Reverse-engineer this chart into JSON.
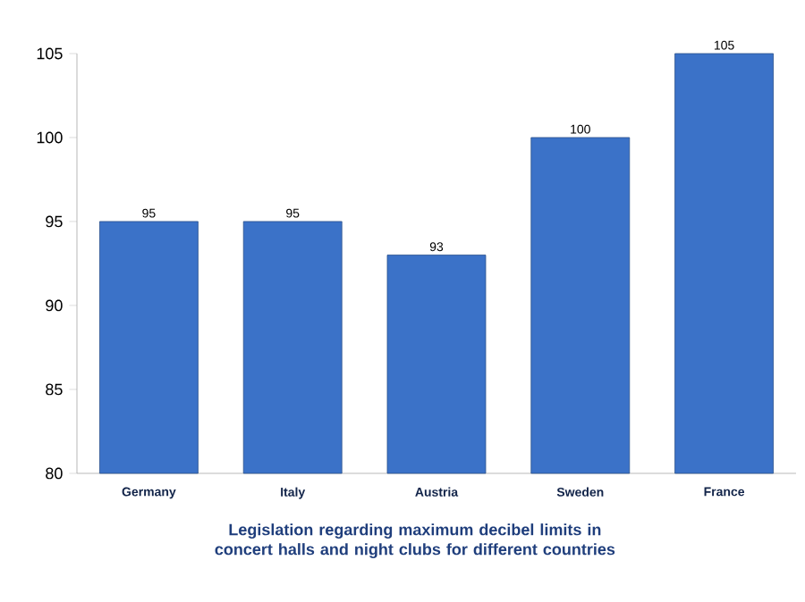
{
  "chart_data": {
    "type": "bar",
    "title": "Legislation regarding maximum decibel limits in concert halls and night clubs for different countries",
    "categories": [
      "Germany",
      "Italy",
      "Austria",
      "Sweden",
      "France"
    ],
    "values": [
      95,
      95,
      93,
      100,
      105
    ],
    "color": "#3b72c8",
    "ylim": [
      80,
      105
    ],
    "yticks": [
      80,
      85,
      90,
      95,
      100,
      105
    ],
    "data_labels": true,
    "grid": false
  }
}
